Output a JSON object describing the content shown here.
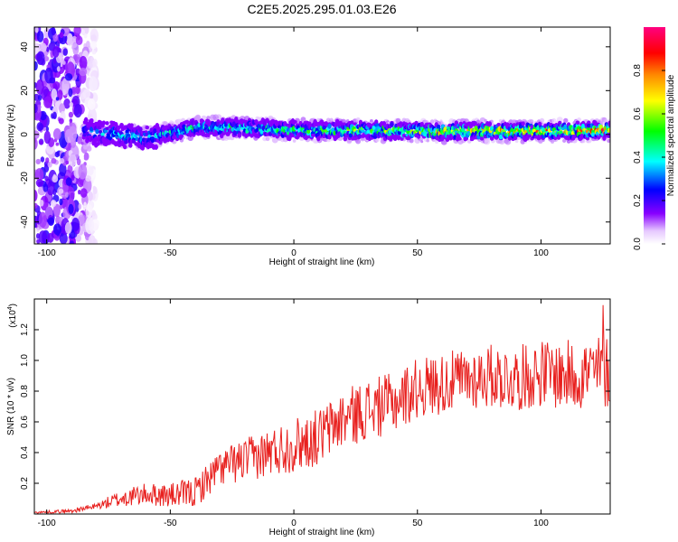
{
  "title": "C2E5.2025.295.01.03.E26",
  "chart_data": [
    {
      "type": "heatmap",
      "xlabel": "Height of straight line (km)",
      "ylabel": "Frequency (Hz)",
      "xlim": [
        -105,
        128
      ],
      "ylim": [
        -50,
        49
      ],
      "xticks": [
        -100,
        -50,
        0,
        50,
        100
      ],
      "xtick_labels": [
        "-100",
        "-50",
        "0",
        "50",
        "100"
      ],
      "yticks": [
        -40,
        -20,
        0,
        20,
        40
      ],
      "ytick_labels": [
        "-40",
        "-20",
        "0",
        "20",
        "40"
      ],
      "colorbar": {
        "label": "Normalized spectral amplitude",
        "range": [
          0,
          1
        ],
        "ticks": [
          0.0,
          0.2,
          0.4,
          0.6,
          0.8
        ],
        "tick_labels": [
          "0.0",
          "0.2",
          "0.4",
          "0.6",
          "0.8"
        ],
        "colors": [
          "#ffffff",
          "#e6c8ff",
          "#8800ff",
          "#0000ff",
          "#00ffff",
          "#00ff00",
          "#ffff00",
          "#ff8800",
          "#ff0000",
          "#ff0080"
        ]
      },
      "band": {
        "x_start": -85,
        "x_end": 128,
        "center_hz": [
          {
            "x": -85,
            "hz": 1.5
          },
          {
            "x": -60,
            "hz": -1.5
          },
          {
            "x": -40,
            "hz": 3
          },
          {
            "x": -20,
            "hz": 3
          },
          {
            "x": 0,
            "hz": 2
          },
          {
            "x": 50,
            "hz": 1.5
          },
          {
            "x": 100,
            "hz": 1.5
          },
          {
            "x": 128,
            "hz": 2
          }
        ],
        "intensity": [
          {
            "x": -85,
            "a": 0.35
          },
          {
            "x": -60,
            "a": 0.45
          },
          {
            "x": -30,
            "a": 0.5
          },
          {
            "x": 0,
            "a": 0.6
          },
          {
            "x": 50,
            "a": 0.7
          },
          {
            "x": 80,
            "a": 0.85
          },
          {
            "x": 128,
            "a": 0.9
          }
        ]
      },
      "noise_region": {
        "x_start": -105,
        "x_end": -80,
        "amplitude": 0.2
      }
    },
    {
      "type": "line",
      "xlabel": "Height of straight line (km)",
      "ylabel": "SNR (10 * v/v)",
      "yscale_label": "(x10",
      "yscale_exponent": "4",
      "xlim": [
        -105,
        128
      ],
      "ylim": [
        0,
        1.4
      ],
      "xticks": [
        -100,
        -50,
        0,
        50,
        100
      ],
      "xtick_labels": [
        "-100",
        "-50",
        "0",
        "50",
        "100"
      ],
      "yticks": [
        0.2,
        0.4,
        0.6,
        0.8,
        1.0,
        1.2
      ],
      "ytick_labels": [
        "0.2",
        "0.4",
        "0.6",
        "0.8",
        "1.0",
        "1.2"
      ],
      "color": "#e8201e",
      "trend": [
        {
          "x": -105,
          "y": 0.01
        },
        {
          "x": -90,
          "y": 0.02
        },
        {
          "x": -80,
          "y": 0.05
        },
        {
          "x": -70,
          "y": 0.1
        },
        {
          "x": -60,
          "y": 0.13
        },
        {
          "x": -50,
          "y": 0.12
        },
        {
          "x": -40,
          "y": 0.14
        },
        {
          "x": -30,
          "y": 0.3
        },
        {
          "x": -20,
          "y": 0.35
        },
        {
          "x": -10,
          "y": 0.4
        },
        {
          "x": 0,
          "y": 0.45
        },
        {
          "x": 10,
          "y": 0.5
        },
        {
          "x": 20,
          "y": 0.62
        },
        {
          "x": 30,
          "y": 0.68
        },
        {
          "x": 40,
          "y": 0.72
        },
        {
          "x": 50,
          "y": 0.82
        },
        {
          "x": 60,
          "y": 0.85
        },
        {
          "x": 70,
          "y": 0.88
        },
        {
          "x": 80,
          "y": 0.9
        },
        {
          "x": 90,
          "y": 0.88
        },
        {
          "x": 100,
          "y": 0.92
        },
        {
          "x": 110,
          "y": 0.9
        },
        {
          "x": 120,
          "y": 0.92
        },
        {
          "x": 128,
          "y": 0.93
        }
      ],
      "amplitude": [
        {
          "x": -105,
          "y": 0.005
        },
        {
          "x": -80,
          "y": 0.02
        },
        {
          "x": -70,
          "y": 0.06
        },
        {
          "x": -50,
          "y": 0.08
        },
        {
          "x": -30,
          "y": 0.12
        },
        {
          "x": 0,
          "y": 0.18
        },
        {
          "x": 30,
          "y": 0.2
        },
        {
          "x": 60,
          "y": 0.2
        },
        {
          "x": 100,
          "y": 0.22
        },
        {
          "x": 128,
          "y": 0.25
        }
      ],
      "peak": {
        "x": 125,
        "y": 1.36
      }
    }
  ]
}
